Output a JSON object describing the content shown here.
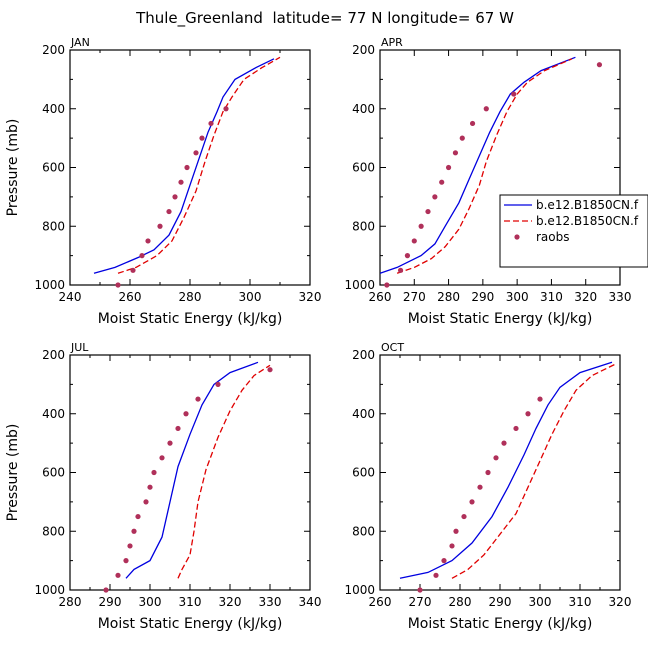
{
  "figure_title": "Thule_Greenland  latitude= 77 N longitude= 67 W",
  "colors": {
    "model_1": "#0000e0",
    "model_2": "#e00000",
    "raobs": "#b0305a",
    "axis": "#000000"
  },
  "chart_data": [
    {
      "type": "line",
      "panel": "JAN",
      "xlabel": "Moist Static Energy (kJ/kg)",
      "ylabel": "Pressure (mb)",
      "xlim": [
        240,
        320
      ],
      "ylim": [
        1000,
        200
      ],
      "xticks": [
        240,
        250,
        260,
        270,
        280,
        290,
        300,
        310,
        320
      ],
      "xticklabels": [
        "240",
        "260",
        "280",
        "300",
        "320"
      ],
      "yticklabels": [
        200,
        400,
        600,
        800,
        1000
      ],
      "legend": false,
      "series": [
        {
          "style": "solid",
          "color": "model_1",
          "points": [
            [
              248,
              960
            ],
            [
              255,
              940
            ],
            [
              263,
              905
            ],
            [
              268,
              880
            ],
            [
              273,
              830
            ],
            [
              277,
              750
            ],
            [
              280,
              660
            ],
            [
              283,
              570
            ],
            [
              286,
              480
            ],
            [
              289,
              410
            ],
            [
              291,
              360
            ],
            [
              295,
              300
            ],
            [
              302,
              260
            ],
            [
              308,
              230
            ]
          ]
        },
        {
          "style": "dashed",
          "color": "model_2",
          "points": [
            [
              256,
              960
            ],
            [
              262,
              940
            ],
            [
              269,
              900
            ],
            [
              274,
              850
            ],
            [
              278,
              770
            ],
            [
              282,
              680
            ],
            [
              285,
              580
            ],
            [
              288,
              490
            ],
            [
              291,
              410
            ],
            [
              294,
              360
            ],
            [
              298,
              300
            ],
            [
              304,
              260
            ],
            [
              310,
              225
            ]
          ]
        },
        {
          "style": "points",
          "color": "raobs",
          "points": [
            [
              256,
              1000
            ],
            [
              261,
              950
            ],
            [
              264,
              900
            ],
            [
              266,
              850
            ],
            [
              270,
              800
            ],
            [
              273,
              750
            ],
            [
              275,
              700
            ],
            [
              277,
              650
            ],
            [
              279,
              600
            ],
            [
              282,
              550
            ],
            [
              284,
              500
            ],
            [
              287,
              450
            ],
            [
              292,
              400
            ]
          ]
        }
      ]
    },
    {
      "type": "line",
      "panel": "APR",
      "xlabel": "Moist Static Energy (kJ/kg)",
      "ylabel": "",
      "xlim": [
        260,
        330
      ],
      "ylim": [
        1000,
        200
      ],
      "xticks": [
        260,
        270,
        280,
        290,
        300,
        310,
        320,
        330
      ],
      "xticklabels": [
        "260",
        "270",
        "280",
        "290",
        "300",
        "310",
        "320",
        "330"
      ],
      "yticklabels": [
        200,
        400,
        600,
        800,
        1000
      ],
      "legend": true,
      "series": [
        {
          "name": "b.e12.B1850CN.f",
          "style": "solid",
          "color": "model_1",
          "points": [
            [
              260,
              960
            ],
            [
              265,
              940
            ],
            [
              272,
              900
            ],
            [
              276,
              860
            ],
            [
              279,
              800
            ],
            [
              283,
              720
            ],
            [
              286,
              640
            ],
            [
              289,
              560
            ],
            [
              292,
              480
            ],
            [
              295,
              410
            ],
            [
              298,
              350
            ],
            [
              302,
              310
            ],
            [
              307,
              270
            ],
            [
              317,
              225
            ]
          ]
        },
        {
          "name": "b.e12.B1850CN.f",
          "style": "dashed",
          "color": "model_2",
          "points": [
            [
              265,
              960
            ],
            [
              270,
              940
            ],
            [
              275,
              910
            ],
            [
              279,
              870
            ],
            [
              283,
              810
            ],
            [
              286,
              740
            ],
            [
              289,
              660
            ],
            [
              291,
              580
            ],
            [
              294,
              490
            ],
            [
              297,
              410
            ],
            [
              300,
              350
            ],
            [
              303,
              310
            ],
            [
              308,
              270
            ],
            [
              316,
              230
            ]
          ]
        },
        {
          "name": "raobs",
          "style": "points",
          "color": "raobs",
          "points": [
            [
              262,
              1000
            ],
            [
              266,
              950
            ],
            [
              268,
              900
            ],
            [
              270,
              850
            ],
            [
              272,
              800
            ],
            [
              274,
              750
            ],
            [
              276,
              700
            ],
            [
              278,
              650
            ],
            [
              280,
              600
            ],
            [
              282,
              550
            ],
            [
              284,
              500
            ],
            [
              287,
              450
            ],
            [
              291,
              400
            ],
            [
              299,
              350
            ],
            [
              324,
              250
            ]
          ]
        }
      ]
    },
    {
      "type": "line",
      "panel": "JUL",
      "xlabel": "Moist Static Energy (kJ/kg)",
      "ylabel": "Pressure (mb)",
      "xlim": [
        280,
        340
      ],
      "ylim": [
        1000,
        200
      ],
      "xticks": [
        280,
        285,
        290,
        295,
        300,
        305,
        310,
        315,
        320,
        325,
        330,
        335,
        340
      ],
      "xticklabels": [
        "280",
        "290",
        "300",
        "310",
        "320",
        "330",
        "340"
      ],
      "yticklabels": [
        200,
        400,
        600,
        800,
        1000
      ],
      "legend": false,
      "series": [
        {
          "style": "solid",
          "color": "model_1",
          "points": [
            [
              294,
              960
            ],
            [
              296,
              930
            ],
            [
              300,
              900
            ],
            [
              303,
              820
            ],
            [
              305,
              700
            ],
            [
              307,
              580
            ],
            [
              310,
              470
            ],
            [
              313,
              370
            ],
            [
              316,
              300
            ],
            [
              320,
              260
            ],
            [
              327,
              225
            ]
          ]
        },
        {
          "style": "dashed",
          "color": "model_2",
          "points": [
            [
              307,
              960
            ],
            [
              308,
              930
            ],
            [
              310,
              880
            ],
            [
              311,
              800
            ],
            [
              312,
              700
            ],
            [
              314,
              590
            ],
            [
              317,
              480
            ],
            [
              320,
              390
            ],
            [
              323,
              320
            ],
            [
              326,
              270
            ],
            [
              330,
              235
            ]
          ]
        },
        {
          "style": "points",
          "color": "raobs",
          "points": [
            [
              289,
              1000
            ],
            [
              292,
              950
            ],
            [
              294,
              900
            ],
            [
              295,
              850
            ],
            [
              296,
              800
            ],
            [
              297,
              750
            ],
            [
              299,
              700
            ],
            [
              300,
              650
            ],
            [
              301,
              600
            ],
            [
              303,
              550
            ],
            [
              305,
              500
            ],
            [
              307,
              450
            ],
            [
              309,
              400
            ],
            [
              312,
              350
            ],
            [
              317,
              300
            ],
            [
              330,
              250
            ]
          ]
        }
      ]
    },
    {
      "type": "line",
      "panel": "OCT",
      "xlabel": "Moist Static Energy (kJ/kg)",
      "ylabel": "",
      "xlim": [
        260,
        320
      ],
      "ylim": [
        1000,
        200
      ],
      "xticks": [
        260,
        265,
        270,
        275,
        280,
        285,
        290,
        295,
        300,
        305,
        310,
        315,
        320
      ],
      "xticklabels": [
        "260",
        "270",
        "280",
        "290",
        "300",
        "310",
        "320"
      ],
      "yticklabels": [
        200,
        400,
        600,
        800,
        1000
      ],
      "legend": false,
      "series": [
        {
          "style": "solid",
          "color": "model_1",
          "points": [
            [
              265,
              960
            ],
            [
              272,
              940
            ],
            [
              278,
              900
            ],
            [
              283,
              840
            ],
            [
              288,
              750
            ],
            [
              292,
              650
            ],
            [
              296,
              540
            ],
            [
              299,
              450
            ],
            [
              302,
              370
            ],
            [
              305,
              310
            ],
            [
              310,
              260
            ],
            [
              318,
              225
            ]
          ]
        },
        {
          "style": "dashed",
          "color": "model_2",
          "points": [
            [
              278,
              960
            ],
            [
              282,
              930
            ],
            [
              286,
              880
            ],
            [
              290,
              810
            ],
            [
              294,
              740
            ],
            [
              297,
              650
            ],
            [
              300,
              560
            ],
            [
              303,
              470
            ],
            [
              306,
              390
            ],
            [
              309,
              320
            ],
            [
              313,
              270
            ],
            [
              319,
              230
            ]
          ]
        },
        {
          "style": "points",
          "color": "raobs",
          "points": [
            [
              270,
              1000
            ],
            [
              274,
              950
            ],
            [
              276,
              900
            ],
            [
              278,
              850
            ],
            [
              279,
              800
            ],
            [
              281,
              750
            ],
            [
              283,
              700
            ],
            [
              285,
              650
            ],
            [
              287,
              600
            ],
            [
              289,
              550
            ],
            [
              291,
              500
            ],
            [
              294,
              450
            ],
            [
              297,
              400
            ],
            [
              300,
              350
            ]
          ]
        }
      ]
    }
  ]
}
